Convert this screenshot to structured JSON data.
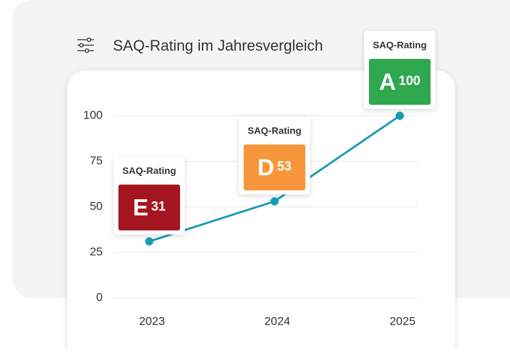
{
  "chart_data": {
    "type": "line",
    "title": "SAQ-Rating im Jahresvergleich",
    "categories": [
      "2023",
      "2024",
      "2025"
    ],
    "series": [
      {
        "name": "SAQ-Rating",
        "color": "#1a9bb5",
        "values": [
          31,
          53,
          100
        ]
      }
    ],
    "grades": [
      "E",
      "D",
      "A"
    ],
    "grade_colors": [
      "#a3161f",
      "#f7963a",
      "#2fa84f"
    ],
    "ylim": [
      0,
      100
    ],
    "yticks": [
      0,
      25,
      50,
      75,
      100
    ],
    "grid": true
  }
}
